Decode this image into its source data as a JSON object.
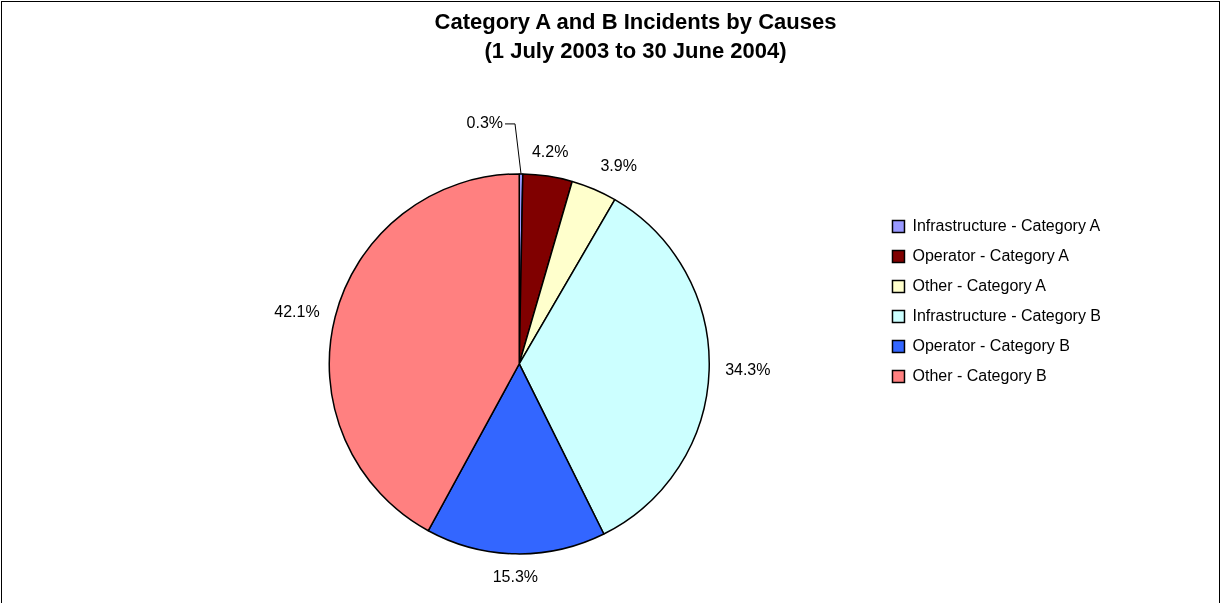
{
  "chart_data": {
    "type": "pie",
    "title": "Category A and B Incidents by Causes",
    "subtitle": "(1 July 2003 to 30 June 2004)",
    "categories": [
      "Infrastructure - Category A",
      "Operator - Category A",
      "Other - Category A",
      "Infrastructure - Category B",
      "Operator - Category B",
      "Other - Category B"
    ],
    "values": [
      0.3,
      4.2,
      3.9,
      34.3,
      15.3,
      42.1
    ],
    "value_labels": [
      "0.3%",
      "4.2%",
      "3.9%",
      "34.3%",
      "15.3%",
      "42.1%"
    ],
    "colors": [
      "#9999ff",
      "#800000",
      "#ffffcc",
      "#ccffff",
      "#3366ff",
      "#ff8080"
    ],
    "legend": "right"
  }
}
